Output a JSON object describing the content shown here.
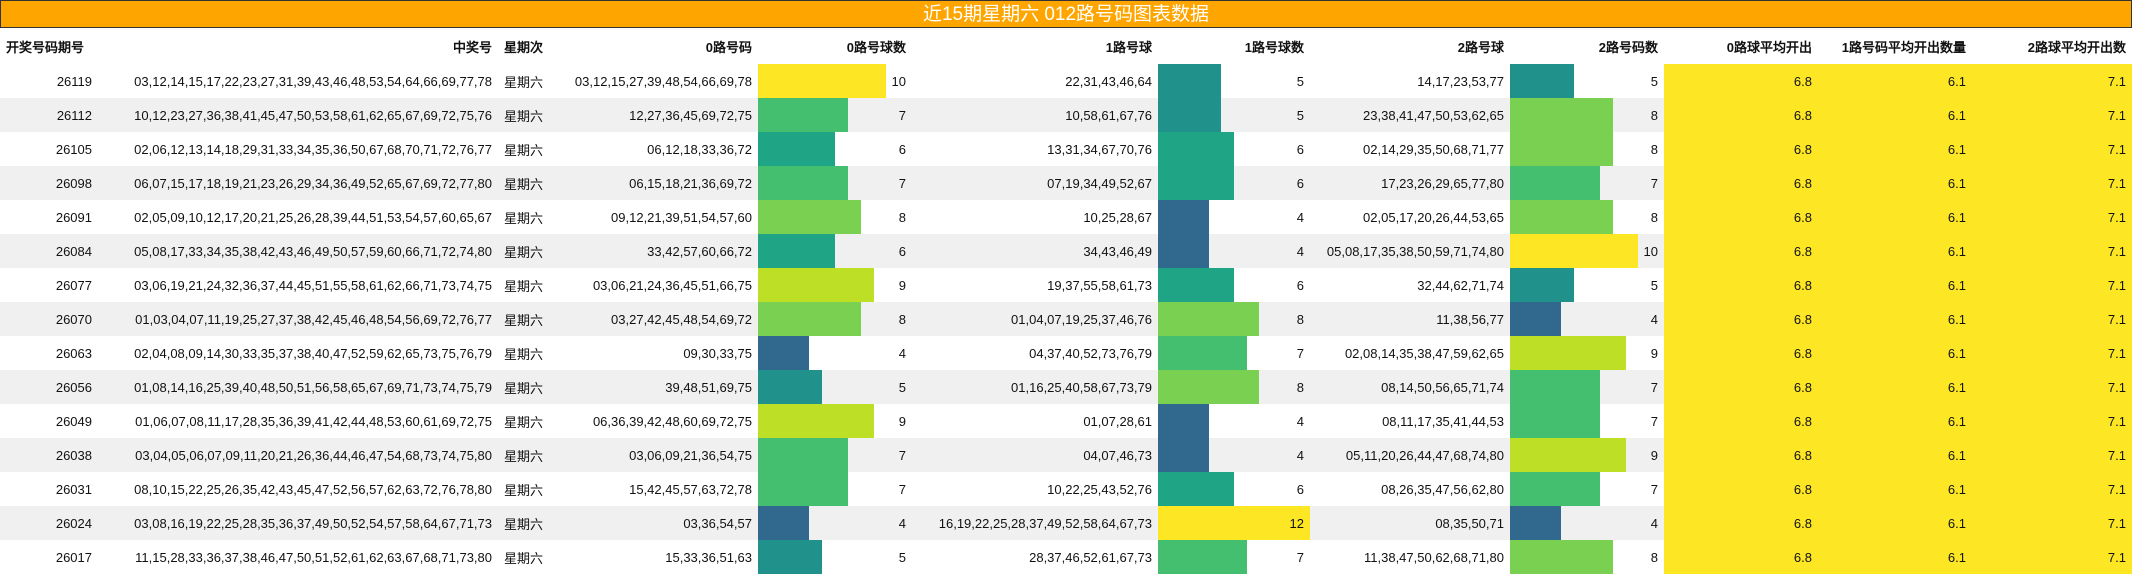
{
  "title": "近15期星期六 012路号码图表数据",
  "headers": [
    "开奖号码期号",
    "中奖号",
    "星期次",
    "0路号码",
    "0路号球数",
    "1路号球",
    "1路号球数",
    "2路号球",
    "2路号码数",
    "0路球平均开出",
    "1路号码平均开出数量",
    "2路球平均开出数"
  ],
  "bar_max": 12,
  "colors": {
    "title_bg": "#FFA500",
    "avg_bg": "#FDE725",
    "count_scale": {
      "4": "#31688E",
      "5": "#21918C",
      "6": "#20A486",
      "7": "#44BF70",
      "8": "#7AD151",
      "9": "#BDDF26",
      "10": "#FDE725",
      "12": "#FDE725"
    }
  },
  "rows": [
    {
      "period": "26119",
      "numbers": "03,12,14,15,17,22,23,27,31,39,43,46,48,53,54,64,66,69,77,78",
      "weekday": "星期六",
      "r0": "03,12,15,27,39,48,54,66,69,78",
      "c0": 10,
      "r1": "22,31,43,46,64",
      "c1": 5,
      "r2": "14,17,23,53,77",
      "c2": 5,
      "a0": "6.8",
      "a1": "6.1",
      "a2": "7.1"
    },
    {
      "period": "26112",
      "numbers": "10,12,23,27,36,38,41,45,47,50,53,58,61,62,65,67,69,72,75,76",
      "weekday": "星期六",
      "r0": "12,27,36,45,69,72,75",
      "c0": 7,
      "r1": "10,58,61,67,76",
      "c1": 5,
      "r2": "23,38,41,47,50,53,62,65",
      "c2": 8,
      "a0": "6.8",
      "a1": "6.1",
      "a2": "7.1"
    },
    {
      "period": "26105",
      "numbers": "02,06,12,13,14,18,29,31,33,34,35,36,50,67,68,70,71,72,76,77",
      "weekday": "星期六",
      "r0": "06,12,18,33,36,72",
      "c0": 6,
      "r1": "13,31,34,67,70,76",
      "c1": 6,
      "r2": "02,14,29,35,50,68,71,77",
      "c2": 8,
      "a0": "6.8",
      "a1": "6.1",
      "a2": "7.1"
    },
    {
      "period": "26098",
      "numbers": "06,07,15,17,18,19,21,23,26,29,34,36,49,52,65,67,69,72,77,80",
      "weekday": "星期六",
      "r0": "06,15,18,21,36,69,72",
      "c0": 7,
      "r1": "07,19,34,49,52,67",
      "c1": 6,
      "r2": "17,23,26,29,65,77,80",
      "c2": 7,
      "a0": "6.8",
      "a1": "6.1",
      "a2": "7.1"
    },
    {
      "period": "26091",
      "numbers": "02,05,09,10,12,17,20,21,25,26,28,39,44,51,53,54,57,60,65,67",
      "weekday": "星期六",
      "r0": "09,12,21,39,51,54,57,60",
      "c0": 8,
      "r1": "10,25,28,67",
      "c1": 4,
      "r2": "02,05,17,20,26,44,53,65",
      "c2": 8,
      "a0": "6.8",
      "a1": "6.1",
      "a2": "7.1"
    },
    {
      "period": "26084",
      "numbers": "05,08,17,33,34,35,38,42,43,46,49,50,57,59,60,66,71,72,74,80",
      "weekday": "星期六",
      "r0": "33,42,57,60,66,72",
      "c0": 6,
      "r1": "34,43,46,49",
      "c1": 4,
      "r2": "05,08,17,35,38,50,59,71,74,80",
      "c2": 10,
      "a0": "6.8",
      "a1": "6.1",
      "a2": "7.1"
    },
    {
      "period": "26077",
      "numbers": "03,06,19,21,24,32,36,37,44,45,51,55,58,61,62,66,71,73,74,75",
      "weekday": "星期六",
      "r0": "03,06,21,24,36,45,51,66,75",
      "c0": 9,
      "r1": "19,37,55,58,61,73",
      "c1": 6,
      "r2": "32,44,62,71,74",
      "c2": 5,
      "a0": "6.8",
      "a1": "6.1",
      "a2": "7.1"
    },
    {
      "period": "26070",
      "numbers": "01,03,04,07,11,19,25,27,37,38,42,45,46,48,54,56,69,72,76,77",
      "weekday": "星期六",
      "r0": "03,27,42,45,48,54,69,72",
      "c0": 8,
      "r1": "01,04,07,19,25,37,46,76",
      "c1": 8,
      "r2": "11,38,56,77",
      "c2": 4,
      "a0": "6.8",
      "a1": "6.1",
      "a2": "7.1"
    },
    {
      "period": "26063",
      "numbers": "02,04,08,09,14,30,33,35,37,38,40,47,52,59,62,65,73,75,76,79",
      "weekday": "星期六",
      "r0": "09,30,33,75",
      "c0": 4,
      "r1": "04,37,40,52,73,76,79",
      "c1": 7,
      "r2": "02,08,14,35,38,47,59,62,65",
      "c2": 9,
      "a0": "6.8",
      "a1": "6.1",
      "a2": "7.1"
    },
    {
      "period": "26056",
      "numbers": "01,08,14,16,25,39,40,48,50,51,56,58,65,67,69,71,73,74,75,79",
      "weekday": "星期六",
      "r0": "39,48,51,69,75",
      "c0": 5,
      "r1": "01,16,25,40,58,67,73,79",
      "c1": 8,
      "r2": "08,14,50,56,65,71,74",
      "c2": 7,
      "a0": "6.8",
      "a1": "6.1",
      "a2": "7.1"
    },
    {
      "period": "26049",
      "numbers": "01,06,07,08,11,17,28,35,36,39,41,42,44,48,53,60,61,69,72,75",
      "weekday": "星期六",
      "r0": "06,36,39,42,48,60,69,72,75",
      "c0": 9,
      "r1": "01,07,28,61",
      "c1": 4,
      "r2": "08,11,17,35,41,44,53",
      "c2": 7,
      "a0": "6.8",
      "a1": "6.1",
      "a2": "7.1"
    },
    {
      "period": "26038",
      "numbers": "03,04,05,06,07,09,11,20,21,26,36,44,46,47,54,68,73,74,75,80",
      "weekday": "星期六",
      "r0": "03,06,09,21,36,54,75",
      "c0": 7,
      "r1": "04,07,46,73",
      "c1": 4,
      "r2": "05,11,20,26,44,47,68,74,80",
      "c2": 9,
      "a0": "6.8",
      "a1": "6.1",
      "a2": "7.1"
    },
    {
      "period": "26031",
      "numbers": "08,10,15,22,25,26,35,42,43,45,47,52,56,57,62,63,72,76,78,80",
      "weekday": "星期六",
      "r0": "15,42,45,57,63,72,78",
      "c0": 7,
      "r1": "10,22,25,43,52,76",
      "c1": 6,
      "r2": "08,26,35,47,56,62,80",
      "c2": 7,
      "a0": "6.8",
      "a1": "6.1",
      "a2": "7.1"
    },
    {
      "period": "26024",
      "numbers": "03,08,16,19,22,25,28,35,36,37,49,50,52,54,57,58,64,67,71,73",
      "weekday": "星期六",
      "r0": "03,36,54,57",
      "c0": 4,
      "r1": "16,19,22,25,28,37,49,52,58,64,67,73",
      "c1": 12,
      "r2": "08,35,50,71",
      "c2": 4,
      "a0": "6.8",
      "a1": "6.1",
      "a2": "7.1"
    },
    {
      "period": "26017",
      "numbers": "11,15,28,33,36,37,38,46,47,50,51,52,61,62,63,67,68,71,73,80",
      "weekday": "星期六",
      "r0": "15,33,36,51,63",
      "c0": 5,
      "r1": "28,37,46,52,61,67,73",
      "c1": 7,
      "r2": "11,38,47,50,62,68,71,80",
      "c2": 8,
      "a0": "6.8",
      "a1": "6.1",
      "a2": "7.1"
    }
  ]
}
